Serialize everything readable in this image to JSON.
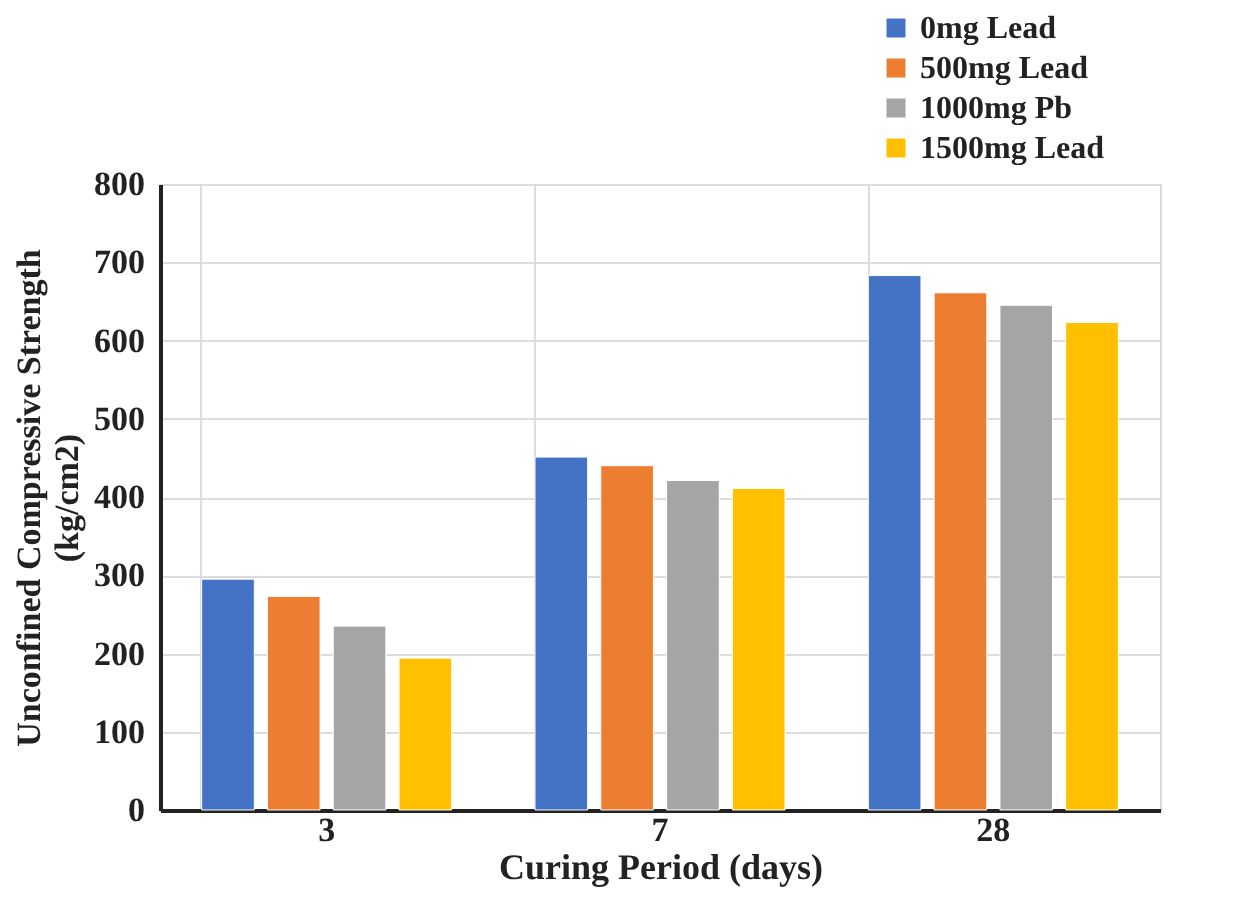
{
  "chart_data": {
    "type": "bar",
    "xlabel": "Curing Period (days)",
    "ylabel": "Unconfined Compressive Strength (kg/cm2)",
    "categories": [
      "3",
      "7",
      "28"
    ],
    "series": [
      {
        "name": "0mg Lead",
        "color": "#4472c4",
        "values": [
          295,
          451,
          683
        ]
      },
      {
        "name": "500mg Lead",
        "color": "#ed7d31",
        "values": [
          273,
          440,
          661
        ]
      },
      {
        "name": "1000mg Pb",
        "color": "#a5a5a5",
        "values": [
          235,
          421,
          645
        ]
      },
      {
        "name": "1500mg Lead",
        "color": "#ffc000",
        "values": [
          194,
          411,
          623
        ]
      }
    ],
    "ylim": [
      0,
      800
    ],
    "yticks": [
      0,
      100,
      200,
      300,
      400,
      500,
      600,
      700,
      800
    ],
    "grid": true,
    "legend": "top right"
  }
}
